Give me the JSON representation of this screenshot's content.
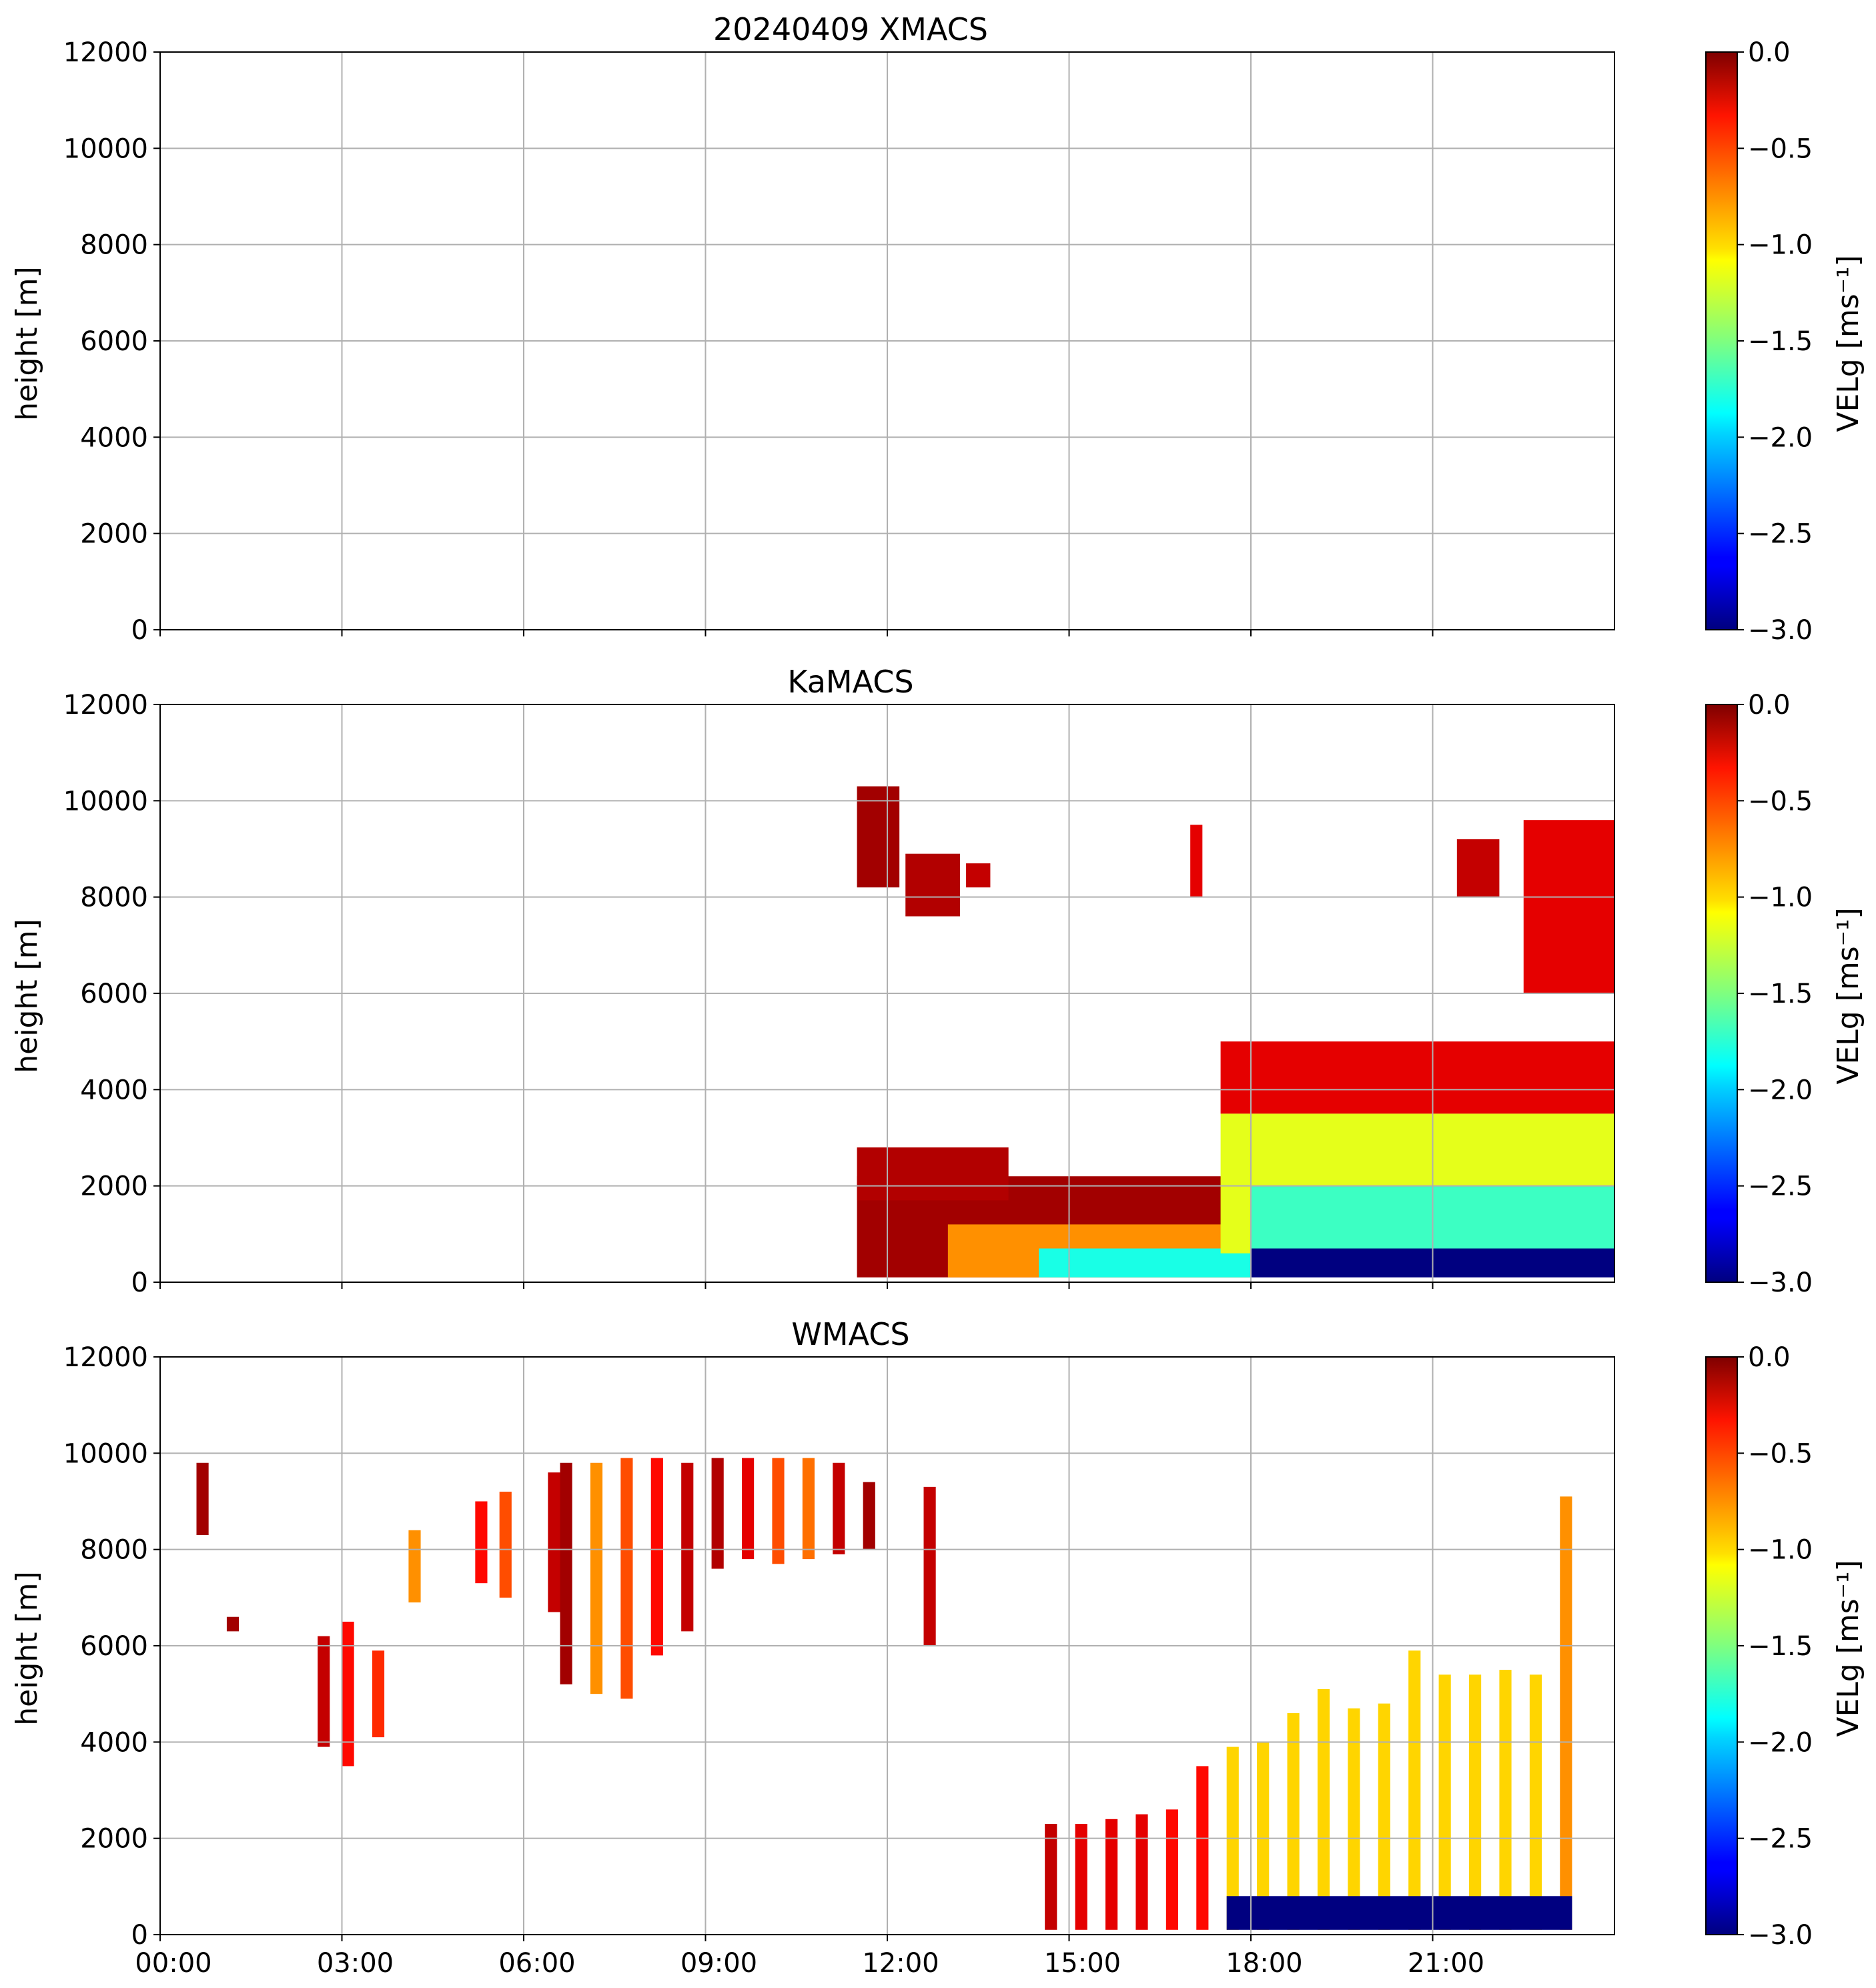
{
  "chart_data": [
    {
      "type": "heatmap",
      "title": "20240409 XMACS",
      "xlabel": "",
      "ylabel": "height [m]",
      "xlim": [
        "00:00",
        "24:00"
      ],
      "ylim": [
        0,
        12000
      ],
      "x_ticks": [
        "00:00",
        "03:00",
        "06:00",
        "09:00",
        "12:00",
        "15:00",
        "18:00",
        "21:00"
      ],
      "y_ticks": [
        "0",
        "2000",
        "4000",
        "6000",
        "8000",
        "10000",
        "12000"
      ],
      "grid": true,
      "colorbar": {
        "label": "VELg [ms⁻¹]",
        "ticks": [
          "0.0",
          "−0.5",
          "−1.0",
          "−1.5",
          "−2.0",
          "−2.5",
          "−3.0"
        ],
        "range": [
          -3.0,
          0.0
        ],
        "colormap": "jet"
      },
      "regions": []
    },
    {
      "type": "heatmap",
      "title": "KaMACS",
      "xlabel": "",
      "ylabel": "height [m]",
      "xlim": [
        "00:00",
        "24:00"
      ],
      "ylim": [
        0,
        12000
      ],
      "x_ticks": [
        "00:00",
        "03:00",
        "06:00",
        "09:00",
        "12:00",
        "15:00",
        "18:00",
        "21:00"
      ],
      "y_ticks": [
        "0",
        "2000",
        "4000",
        "6000",
        "8000",
        "10000",
        "12000"
      ],
      "grid": true,
      "colorbar": {
        "label": "VELg [ms⁻¹]",
        "ticks": [
          "0.0",
          "−0.5",
          "−1.0",
          "−1.5",
          "−2.0",
          "−2.5",
          "−3.0"
        ],
        "range": [
          -3.0,
          0.0
        ],
        "colormap": "jet"
      },
      "regions": [
        {
          "t": [
            11.5,
            12.2
          ],
          "z": [
            8200,
            10300
          ],
          "v": -0.1
        },
        {
          "t": [
            12.3,
            13.2
          ],
          "z": [
            7600,
            8900
          ],
          "v": -0.15
        },
        {
          "t": [
            13.3,
            13.7
          ],
          "z": [
            8200,
            8700
          ],
          "v": -0.2
        },
        {
          "t": [
            17.0,
            17.2
          ],
          "z": [
            8000,
            9500
          ],
          "v": -0.3
        },
        {
          "t": [
            21.4,
            22.1
          ],
          "z": [
            8000,
            9200
          ],
          "v": -0.2
        },
        {
          "t": [
            22.5,
            24.0
          ],
          "z": [
            6000,
            9600
          ],
          "v": -0.3
        },
        {
          "t": [
            11.5,
            18.0
          ],
          "z": [
            100,
            2200
          ],
          "v": -0.1
        },
        {
          "t": [
            11.5,
            14.0
          ],
          "z": [
            1700,
            2800
          ],
          "v": -0.15
        },
        {
          "t": [
            13.0,
            18.0
          ],
          "z": [
            100,
            1200
          ],
          "v": -0.8
        },
        {
          "t": [
            14.5,
            18.0
          ],
          "z": [
            100,
            700
          ],
          "v": -1.8
        },
        {
          "t": [
            17.5,
            24.0
          ],
          "z": [
            3500,
            5000
          ],
          "v": -0.3
        },
        {
          "t": [
            17.5,
            24.0
          ],
          "z": [
            600,
            3500
          ],
          "v": -1.2
        },
        {
          "t": [
            18.0,
            24.0
          ],
          "z": [
            600,
            2000
          ],
          "v": -1.7
        },
        {
          "t": [
            18.0,
            24.0
          ],
          "z": [
            100,
            700
          ],
          "v": -3.0
        }
      ]
    },
    {
      "type": "heatmap",
      "title": "WMACS",
      "xlabel": "",
      "ylabel": "height [m]",
      "xlim": [
        "00:00",
        "24:00"
      ],
      "ylim": [
        0,
        12000
      ],
      "x_ticks": [
        "00:00",
        "03:00",
        "06:00",
        "09:00",
        "12:00",
        "15:00",
        "18:00",
        "21:00"
      ],
      "y_ticks": [
        "0",
        "2000",
        "4000",
        "6000",
        "8000",
        "10000",
        "12000"
      ],
      "grid": true,
      "colorbar": {
        "label": "VELg [ms⁻¹]",
        "ticks": [
          "0.0",
          "−0.5",
          "−1.0",
          "−1.5",
          "−2.0",
          "−2.5",
          "−3.0"
        ],
        "range": [
          -3.0,
          0.0
        ],
        "colormap": "jet"
      },
      "regions": [
        {
          "t": [
            0.6,
            0.8
          ],
          "z": [
            8300,
            9800
          ],
          "v": -0.1
        },
        {
          "t": [
            1.1,
            1.3
          ],
          "z": [
            6300,
            6600
          ],
          "v": -0.1
        },
        {
          "t": [
            2.6,
            2.8
          ],
          "z": [
            3900,
            6200
          ],
          "v": -0.2
        },
        {
          "t": [
            3.0,
            3.2
          ],
          "z": [
            3500,
            6500
          ],
          "v": -0.4
        },
        {
          "t": [
            3.5,
            3.7
          ],
          "z": [
            4100,
            5900
          ],
          "v": -0.5
        },
        {
          "t": [
            4.1,
            4.3
          ],
          "z": [
            6900,
            8400
          ],
          "v": -0.8
        },
        {
          "t": [
            5.2,
            5.4
          ],
          "z": [
            7300,
            9000
          ],
          "v": -0.4
        },
        {
          "t": [
            5.6,
            5.8
          ],
          "z": [
            7000,
            9200
          ],
          "v": -0.6
        },
        {
          "t": [
            6.4,
            6.6
          ],
          "z": [
            6700,
            9600
          ],
          "v": -0.2
        },
        {
          "t": [
            6.6,
            6.8
          ],
          "z": [
            5200,
            9800
          ],
          "v": -0.1
        },
        {
          "t": [
            7.1,
            7.3
          ],
          "z": [
            5000,
            9800
          ],
          "v": -0.8
        },
        {
          "t": [
            7.6,
            7.8
          ],
          "z": [
            4900,
            9900
          ],
          "v": -0.6
        },
        {
          "t": [
            8.1,
            8.3
          ],
          "z": [
            5800,
            9900
          ],
          "v": -0.4
        },
        {
          "t": [
            8.6,
            8.8
          ],
          "z": [
            6300,
            9800
          ],
          "v": -0.2
        },
        {
          "t": [
            9.1,
            9.3
          ],
          "z": [
            7600,
            9900
          ],
          "v": -0.15
        },
        {
          "t": [
            9.6,
            9.8
          ],
          "z": [
            7800,
            9900
          ],
          "v": -0.3
        },
        {
          "t": [
            10.1,
            10.3
          ],
          "z": [
            7700,
            9900
          ],
          "v": -0.6
        },
        {
          "t": [
            10.6,
            10.8
          ],
          "z": [
            7800,
            9900
          ],
          "v": -0.7
        },
        {
          "t": [
            11.1,
            11.3
          ],
          "z": [
            7900,
            9800
          ],
          "v": -0.2
        },
        {
          "t": [
            11.6,
            11.8
          ],
          "z": [
            8000,
            9400
          ],
          "v": -0.1
        },
        {
          "t": [
            12.6,
            12.8
          ],
          "z": [
            6000,
            9300
          ],
          "v": -0.2
        },
        {
          "t": [
            14.6,
            14.8
          ],
          "z": [
            100,
            2300
          ],
          "v": -0.2
        },
        {
          "t": [
            15.1,
            15.3
          ],
          "z": [
            100,
            2300
          ],
          "v": -0.3
        },
        {
          "t": [
            15.6,
            15.8
          ],
          "z": [
            100,
            2400
          ],
          "v": -0.3
        },
        {
          "t": [
            16.1,
            16.3
          ],
          "z": [
            100,
            2500
          ],
          "v": -0.3
        },
        {
          "t": [
            16.6,
            16.8
          ],
          "z": [
            100,
            2600
          ],
          "v": -0.4
        },
        {
          "t": [
            17.1,
            17.3
          ],
          "z": [
            100,
            3500
          ],
          "v": -0.4
        },
        {
          "t": [
            17.6,
            17.8
          ],
          "z": [
            100,
            3900
          ],
          "v": -1.0
        },
        {
          "t": [
            18.1,
            18.3
          ],
          "z": [
            100,
            4000
          ],
          "v": -1.0
        },
        {
          "t": [
            18.6,
            18.8
          ],
          "z": [
            100,
            4600
          ],
          "v": -1.0
        },
        {
          "t": [
            19.1,
            19.3
          ],
          "z": [
            100,
            5100
          ],
          "v": -1.0
        },
        {
          "t": [
            19.6,
            19.8
          ],
          "z": [
            100,
            4700
          ],
          "v": -1.0
        },
        {
          "t": [
            20.1,
            20.3
          ],
          "z": [
            100,
            4800
          ],
          "v": -1.0
        },
        {
          "t": [
            20.6,
            20.8
          ],
          "z": [
            100,
            5900
          ],
          "v": -1.0
        },
        {
          "t": [
            21.1,
            21.3
          ],
          "z": [
            100,
            5400
          ],
          "v": -1.0
        },
        {
          "t": [
            21.6,
            21.8
          ],
          "z": [
            100,
            5400
          ],
          "v": -1.0
        },
        {
          "t": [
            22.1,
            22.3
          ],
          "z": [
            100,
            5500
          ],
          "v": -1.0
        },
        {
          "t": [
            22.6,
            22.8
          ],
          "z": [
            100,
            5400
          ],
          "v": -1.0
        },
        {
          "t": [
            23.1,
            23.3
          ],
          "z": [
            100,
            9100
          ],
          "v": -0.8
        },
        {
          "t": [
            17.6,
            23.3
          ],
          "z": [
            100,
            800
          ],
          "v": -3.0
        }
      ]
    }
  ]
}
